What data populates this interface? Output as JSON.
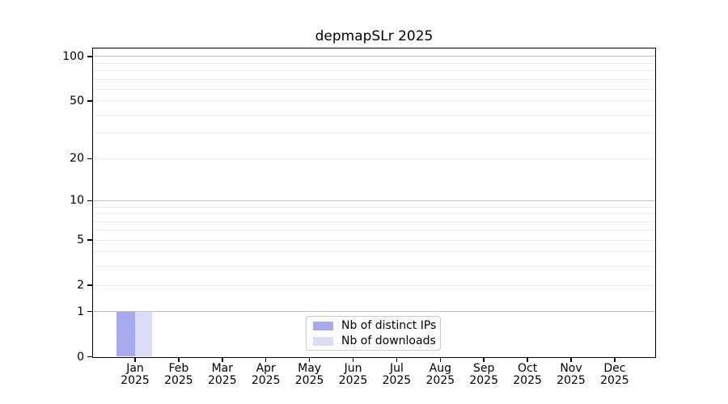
{
  "chart_data": {
    "type": "bar",
    "title": "depmapSLr 2025",
    "categories": [
      "Jan",
      "Feb",
      "Mar",
      "Apr",
      "May",
      "Jun",
      "Jul",
      "Aug",
      "Sep",
      "Oct",
      "Nov",
      "Dec"
    ],
    "category_year": "2025",
    "series": [
      {
        "name": "Nb of distinct IPs",
        "color": "#a9a9f0",
        "values": [
          1,
          0,
          0,
          0,
          0,
          0,
          0,
          0,
          0,
          0,
          0,
          0
        ]
      },
      {
        "name": "Nb of downloads",
        "color": "#dcdcf8",
        "values": [
          1,
          0,
          0,
          0,
          0,
          0,
          0,
          0,
          0,
          0,
          0,
          0
        ]
      }
    ],
    "y_axis": {
      "scale": "log1p",
      "tick_values": [
        100,
        50,
        20,
        10,
        5,
        2,
        1,
        0
      ],
      "tick_labels": [
        "100",
        "50",
        "20",
        "10",
        "5",
        "2",
        "1",
        "0"
      ],
      "max_value": 100,
      "grid_major": [
        1,
        10,
        100
      ],
      "grid_minor": [
        2,
        3,
        4,
        5,
        6,
        7,
        8,
        9,
        20,
        30,
        40,
        50,
        60,
        70,
        80,
        90
      ]
    },
    "legend": {
      "position": "lower center"
    },
    "grid": "on",
    "colors": {
      "spine": "#000000",
      "grid_major": "#bfbfbf",
      "grid_minor": "#eaeaea",
      "background": "#ffffff"
    }
  }
}
